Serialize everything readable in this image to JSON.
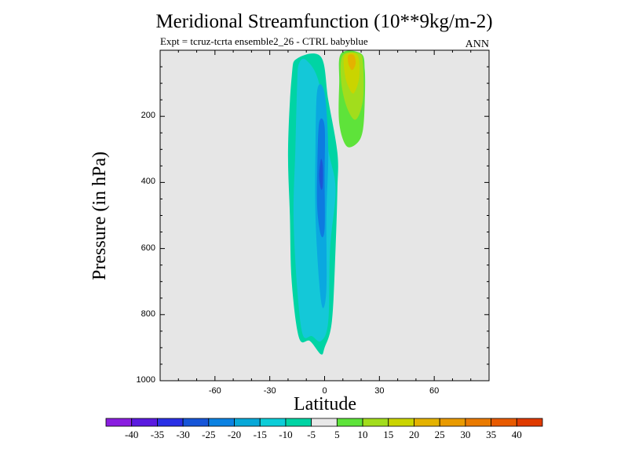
{
  "chart_data": {
    "type": "contour",
    "title": "Meridional Streamfunction (10**9kg/m-2)",
    "subtitle": "Expt = tcruz-tcrta  ensemble2_26 - CTRL babyblue",
    "season": "ANN",
    "xlabel": "Latitude",
    "ylabel": "Pressure (in hPa)",
    "xlim": [
      -90,
      90
    ],
    "ylim": [
      1000,
      0
    ],
    "x_ticks": [
      -60,
      -30,
      0,
      30,
      60
    ],
    "y_ticks": [
      200,
      400,
      600,
      800,
      1000
    ],
    "background": "#e6e6e6",
    "series": [
      {
        "level": -10,
        "color": "#00d4a4",
        "outline": [
          [
            -15,
            25
          ],
          [
            -18,
            80
          ],
          [
            -20,
            300
          ],
          [
            -19,
            500
          ],
          [
            -18,
            700
          ],
          [
            -14,
            870
          ],
          [
            -8,
            880
          ],
          [
            -2,
            920
          ],
          [
            0,
            900
          ],
          [
            4,
            820
          ],
          [
            6,
            600
          ],
          [
            7,
            420
          ],
          [
            7,
            310
          ],
          [
            2,
            150
          ],
          [
            -2,
            20
          ]
        ]
      },
      {
        "level": -15,
        "color": "#14c8d8",
        "outline": [
          [
            -14,
            40
          ],
          [
            -15,
            100
          ],
          [
            -16,
            300
          ],
          [
            -17,
            500
          ],
          [
            -15,
            720
          ],
          [
            -12,
            860
          ],
          [
            -7,
            865
          ],
          [
            -2,
            880
          ],
          [
            2,
            820
          ],
          [
            3,
            600
          ],
          [
            6,
            420
          ],
          [
            2,
            300
          ],
          [
            -3,
            100
          ],
          [
            -10,
            30
          ]
        ]
      },
      {
        "level": -20,
        "color": "#0aa8e0",
        "outline": [
          [
            -4,
            120
          ],
          [
            -5,
            300
          ],
          [
            -5,
            500
          ],
          [
            -3,
            700
          ],
          [
            -1,
            780
          ],
          [
            1,
            720
          ],
          [
            1,
            500
          ],
          [
            2,
            300
          ],
          [
            0,
            130
          ]
        ]
      },
      {
        "level": -25,
        "color": "#0d7be0",
        "outline": [
          [
            -3,
            220
          ],
          [
            -4,
            360
          ],
          [
            -4,
            480
          ],
          [
            -2,
            560
          ],
          [
            0,
            540
          ],
          [
            0,
            380
          ],
          [
            0,
            230
          ]
        ]
      },
      {
        "level": -30,
        "color": "#1b55d6",
        "outline": [
          [
            -2,
            330
          ],
          [
            -3,
            380
          ],
          [
            -2,
            420
          ],
          [
            -1,
            410
          ],
          [
            -1,
            350
          ]
        ]
      },
      {
        "level": 5,
        "color": "#5ee33a",
        "outline": [
          [
            9,
            10
          ],
          [
            8,
            100
          ],
          [
            8,
            220
          ],
          [
            12,
            290
          ],
          [
            18,
            280
          ],
          [
            21,
            240
          ],
          [
            22,
            150
          ],
          [
            22,
            60
          ],
          [
            20,
            10
          ]
        ]
      },
      {
        "level": 10,
        "color": "#a2dd1c",
        "outline": [
          [
            10,
            15
          ],
          [
            9,
            90
          ],
          [
            12,
            170
          ],
          [
            17,
            210
          ],
          [
            21,
            150
          ],
          [
            21,
            40
          ],
          [
            19,
            10
          ]
        ]
      },
      {
        "level": 15,
        "color": "#cad400",
        "outline": [
          [
            11,
            15
          ],
          [
            11,
            70
          ],
          [
            13,
            110
          ],
          [
            16,
            130
          ],
          [
            19,
            80
          ],
          [
            18,
            15
          ]
        ]
      },
      {
        "level": 20,
        "color": "#e4b200",
        "outline": [
          [
            13,
            15
          ],
          [
            13,
            40
          ],
          [
            15,
            60
          ],
          [
            17,
            40
          ],
          [
            16,
            15
          ]
        ]
      }
    ],
    "colorbar": {
      "colors": [
        "#8a1ee0",
        "#5a1ae0",
        "#2a30e6",
        "#1655d8",
        "#0b82e2",
        "#07a8d8",
        "#0ccdd8",
        "#00d4a4",
        "#e8e8e8",
        "#5ee33a",
        "#a2dd1c",
        "#cad400",
        "#e4b200",
        "#e99a00",
        "#ea7a00",
        "#e85a00",
        "#e03a00"
      ],
      "labels": [
        "-40",
        "-35",
        "-30",
        "-25",
        "-20",
        "-15",
        "-10",
        "-5",
        "5",
        "10",
        "15",
        "20",
        "25",
        "30",
        "35",
        "40"
      ]
    }
  }
}
